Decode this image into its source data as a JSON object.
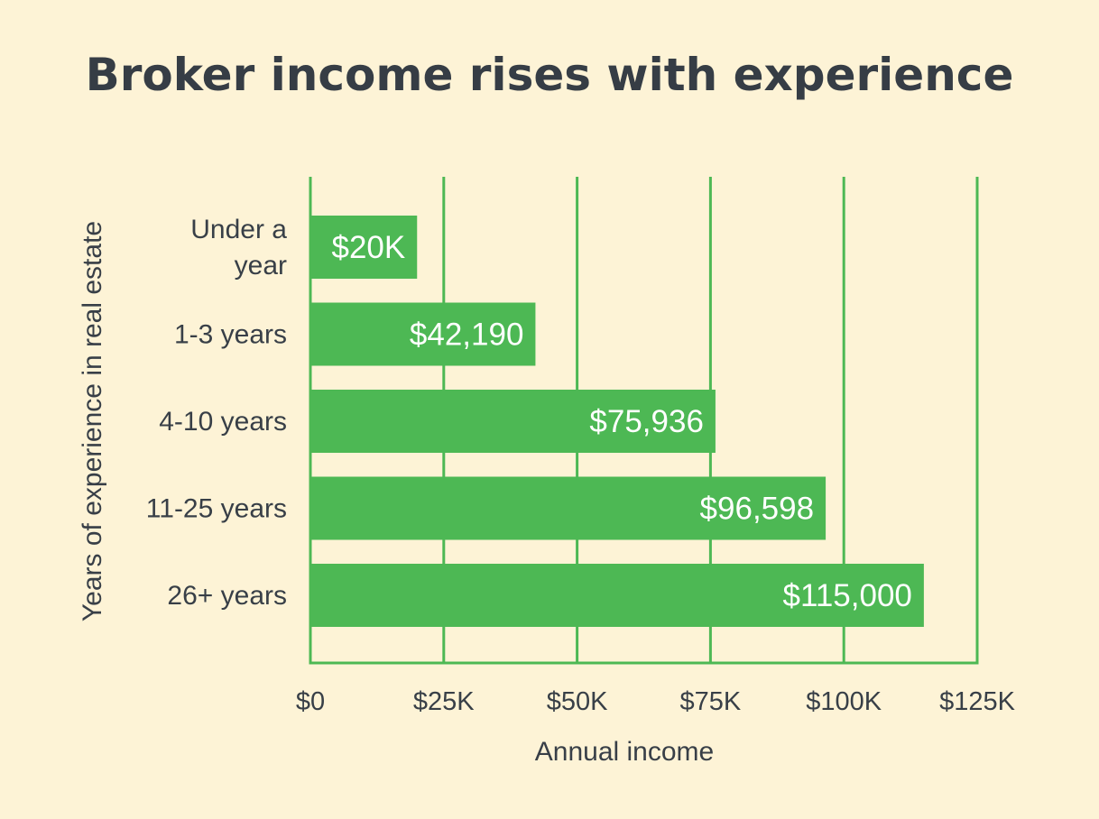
{
  "chart_data": {
    "type": "bar",
    "orientation": "horizontal",
    "title": "Broker income rises with experience",
    "xlabel": "Annual income",
    "ylabel": "Years of experience in real estate",
    "categories": [
      [
        "Under a",
        "year"
      ],
      [
        "1-3 years"
      ],
      [
        "4-10 years"
      ],
      [
        "11-25 years"
      ],
      [
        "26+ years"
      ]
    ],
    "values": [
      20000,
      42190,
      75936,
      96598,
      115000
    ],
    "value_labels": [
      "$20K",
      "$42,190",
      "$75,936",
      "$96,598",
      "$115,000"
    ],
    "xlim": [
      0,
      125000
    ],
    "xticks": [
      0,
      25000,
      50000,
      75000,
      100000,
      125000
    ],
    "xtick_labels": [
      "$0",
      "$25K",
      "$50K",
      "$75K",
      "$100K",
      "$125K"
    ],
    "grid": true,
    "colors": {
      "bar": "#4db854",
      "grid": "#4db854",
      "background": "#fdf3d6",
      "text": "#383f47",
      "bar_text": "#ffffff"
    }
  }
}
